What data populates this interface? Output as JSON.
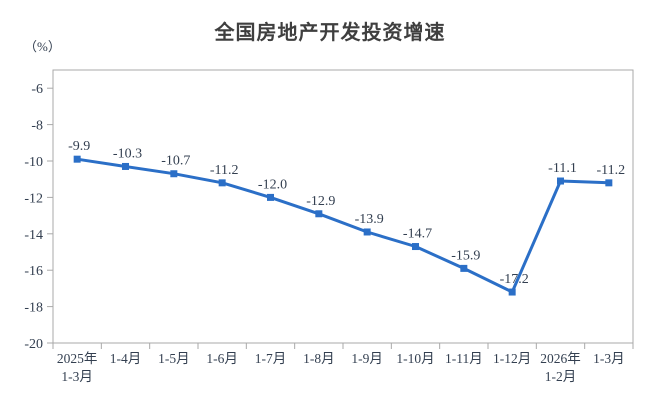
{
  "chart_data": {
    "type": "line",
    "title": "全国房地产开发投资增速",
    "ylabel": "（%）",
    "categories": [
      [
        "2025年",
        "1-3月"
      ],
      [
        "1-4月"
      ],
      [
        "1-5月"
      ],
      [
        "1-6月"
      ],
      [
        "1-7月"
      ],
      [
        "1-8月"
      ],
      [
        "1-9月"
      ],
      [
        "1-10月"
      ],
      [
        "1-11月"
      ],
      [
        "1-12月"
      ],
      [
        "2026年",
        "1-2月"
      ],
      [
        "1-3月"
      ]
    ],
    "values": [
      -9.9,
      -10.3,
      -10.7,
      -11.2,
      -12.0,
      -12.9,
      -13.9,
      -14.7,
      -15.9,
      -17.2,
      -11.1,
      -11.2
    ],
    "point_labels": [
      "-9.9",
      "-10.3",
      "-10.7",
      "-11.2",
      "-12.0",
      "-12.9",
      "-13.9",
      "-14.7",
      "-15.9",
      "-17.2",
      "-11.1",
      "-11.2"
    ],
    "ylim": [
      -20,
      -5
    ],
    "yticks": [
      -6,
      -8,
      -10,
      -12,
      -14,
      -16,
      -18,
      -20
    ],
    "grid": false,
    "legend": "none",
    "colors": {
      "line": "#2b6fc7",
      "marker": "#2b6fc7",
      "axis": "#a9a9a9",
      "label_text": "#333f50",
      "title_text": "#3f3f3f",
      "background": "#ffffff"
    }
  }
}
